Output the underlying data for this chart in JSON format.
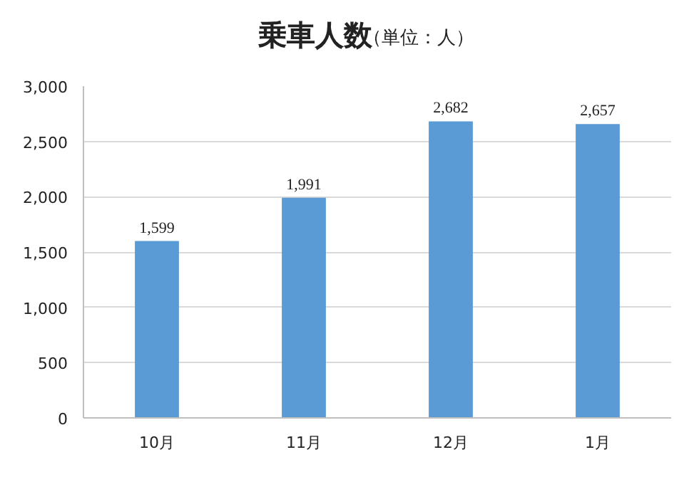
{
  "chart_data": {
    "type": "bar",
    "title": "乗車人数",
    "subtitle": "（単位：人）",
    "categories": [
      "10月",
      "11月",
      "12月",
      "1月"
    ],
    "values": [
      1599,
      1991,
      2682,
      2657
    ],
    "color": "#5b9bd5",
    "ylim": [
      0,
      3000
    ],
    "yticks": [
      0,
      500,
      {
        "value": 1000,
        "label": "1,000"
      },
      {
        "value": 1500,
        "label": "1,500"
      },
      {
        "value": 2000,
        "label": "2,000"
      },
      {
        "value": 2500,
        "label": "2,500"
      },
      {
        "value": 3000,
        "label": "3,000"
      }
    ],
    "value_labels": [
      "1,599",
      "1,991",
      "2,682",
      "2,657"
    ],
    "grid": "y"
  }
}
